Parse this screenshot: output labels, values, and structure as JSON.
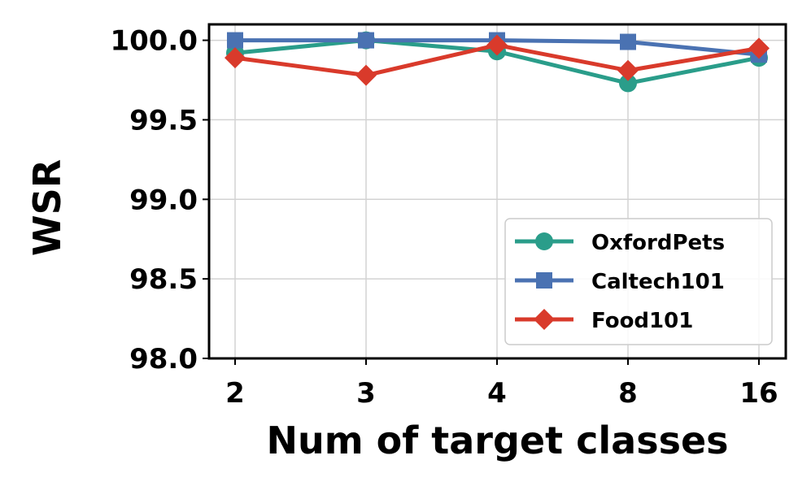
{
  "chart_data": {
    "type": "line",
    "xlabel": "Num of target classes",
    "ylabel": "WSR",
    "categories": [
      "2",
      "3",
      "4",
      "8",
      "16"
    ],
    "ylim": [
      98.0,
      100.1
    ],
    "yticks": [
      "98.0",
      "98.5",
      "99.0",
      "99.5",
      "100.0"
    ],
    "grid": true,
    "legend_position": "lower-right",
    "series": [
      {
        "name": "OxfordPets",
        "color": "#2a9d8a",
        "marker": "circle",
        "values": [
          99.92,
          100.0,
          99.93,
          99.73,
          99.89
        ]
      },
      {
        "name": "Caltech101",
        "color": "#4a72b2",
        "marker": "square",
        "values": [
          100.0,
          100.0,
          100.0,
          99.99,
          99.91
        ]
      },
      {
        "name": "Food101",
        "color": "#d93a2b",
        "marker": "diamond",
        "values": [
          99.89,
          99.78,
          99.97,
          99.81,
          99.95
        ]
      }
    ]
  }
}
